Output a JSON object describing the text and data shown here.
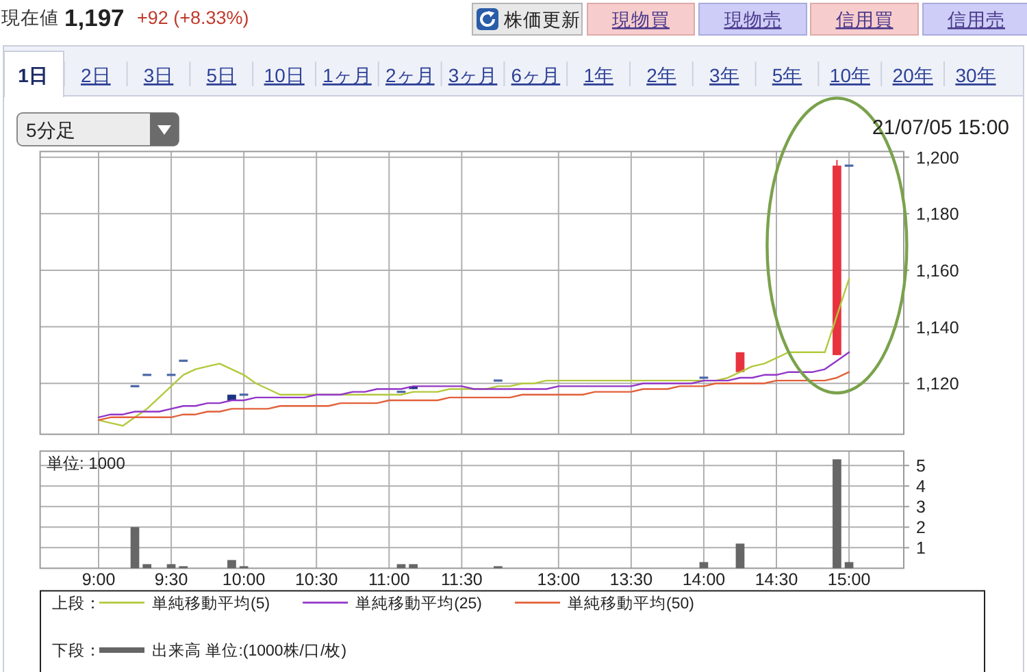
{
  "chart_data": [
    {
      "type": "other",
      "annotations": [
        "現在値",
        "1,197",
        "+92 (+8.33%)",
        "株価更新",
        "現物買",
        "現物売",
        "信用買",
        "信用売",
        "1日",
        "2日",
        "3日",
        "5日",
        "10日",
        "1ヶ月",
        "2ヶ月",
        "3ヶ月",
        "6ヶ月",
        "1年",
        "2年",
        "3年",
        "5年",
        "10年",
        "20年",
        "30年",
        "5分足"
      ]
    },
    {
      "type": "candlestick",
      "categories": [
        null,
        null,
        null,
        null,
        null,
        null,
        null,
        null,
        null,
        null,
        null,
        null,
        null,
        null,
        null,
        null,
        null,
        null,
        null,
        null,
        null,
        null,
        null,
        null,
        null,
        null,
        null,
        null,
        null,
        null,
        null,
        null,
        null,
        null,
        null,
        null,
        null,
        null,
        null,
        null,
        null,
        null,
        null,
        null,
        null,
        null,
        null,
        null,
        null,
        null,
        null,
        null,
        null,
        null,
        null,
        null,
        null,
        null,
        null,
        null,
        null,
        null,
        null
      ],
      "ohlc": [
        null,
        null,
        null,
        [
          1119,
          1119,
          1119,
          1119
        ],
        [
          1123,
          1123,
          1123,
          1123
        ],
        null,
        [
          1123,
          1123,
          1123,
          1123
        ],
        [
          1128,
          1128,
          1128,
          1128
        ],
        null,
        null,
        null,
        [
          1116,
          1116,
          1114,
          1114
        ],
        [
          1116,
          1116,
          1116,
          1116
        ],
        null,
        null,
        null,
        null,
        null,
        null,
        null,
        null,
        null,
        null,
        null,
        null,
        [
          1117,
          1117,
          1117,
          1117
        ],
        [
          1119,
          1119,
          1118,
          1118
        ],
        null,
        null,
        null,
        null,
        null,
        null,
        [
          1121,
          1121,
          1121,
          1121
        ],
        null,
        null,
        null,
        null,
        null,
        null,
        null,
        null,
        null,
        null,
        null,
        null,
        null,
        null,
        null,
        null,
        [
          1122,
          1122,
          1122,
          1122
        ],
        null,
        null,
        [
          1124,
          1131,
          1124,
          1131
        ],
        null,
        null,
        null,
        null,
        null,
        null,
        null,
        [
          1130,
          1199,
          1130,
          1197
        ],
        [
          1197,
          1197,
          1197,
          1197
        ]
      ],
      "colors": [
        null,
        null,
        null,
        "#4a66a8",
        "#4a66a8",
        null,
        "#4a66a8",
        "#4a66a8",
        null,
        null,
        null,
        "#1c3382",
        "#4a66a8",
        null,
        null,
        null,
        null,
        null,
        null,
        null,
        null,
        null,
        null,
        null,
        null,
        "#4a66a8",
        "#1c3382",
        null,
        null,
        null,
        null,
        null,
        null,
        "#4a66a8",
        null,
        null,
        null,
        null,
        null,
        null,
        null,
        null,
        null,
        null,
        null,
        null,
        null,
        null,
        null,
        null,
        "#4a66a8",
        null,
        null,
        "#e8333f",
        null,
        null,
        null,
        null,
        null,
        null,
        null,
        "#e8333f",
        "#4a66a8"
      ],
      "series": [
        {
          "type": "line",
          "name": "単純移動平均(5)",
          "color": "#b4c83c",
          "values": [
            1107,
            1106,
            1105,
            1108,
            1111,
            1115,
            1119,
            1123,
            1125,
            1126,
            1127,
            1125,
            1123,
            1120,
            1118,
            1116,
            1116,
            1116,
            1116,
            1116,
            1116,
            1116,
            1116,
            1116,
            1116,
            1116,
            1117,
            1117,
            1117,
            1118,
            1118,
            1118,
            1118,
            1119,
            1119,
            1120,
            1120,
            1121,
            1121,
            1121,
            1121,
            1121,
            1121,
            1121,
            1121,
            1121,
            1121,
            1121,
            1121,
            1121,
            1121,
            1121,
            1122,
            1124,
            1126,
            1127,
            1129,
            1131,
            1131,
            1131,
            1131,
            1144,
            1157
          ]
        },
        {
          "type": "line",
          "name": "単純移動平均(25)",
          "color": "#9236c8",
          "values": [
            1108,
            1109,
            1109,
            1110,
            1110,
            1110,
            1111,
            1112,
            1112,
            1113,
            1113,
            1114,
            1114,
            1115,
            1115,
            1115,
            1115,
            1115,
            1116,
            1116,
            1116,
            1117,
            1117,
            1118,
            1118,
            1118,
            1119,
            1119,
            1119,
            1119,
            1119,
            1118,
            1118,
            1118,
            1118,
            1118,
            1118,
            1118,
            1119,
            1119,
            1119,
            1119,
            1119,
            1119,
            1119,
            1120,
            1120,
            1120,
            1120,
            1120,
            1121,
            1121,
            1121,
            1122,
            1122,
            1123,
            1123,
            1124,
            1124,
            1124,
            1125,
            1128,
            1131
          ]
        },
        {
          "type": "line",
          "name": "単純移動平均(50)",
          "color": "#e2603a",
          "values": [
            1107,
            1108,
            1108,
            1108,
            1108,
            1108,
            1108,
            1109,
            1109,
            1110,
            1110,
            1111,
            1111,
            1111,
            1111,
            1112,
            1112,
            1112,
            1112,
            1112,
            1113,
            1113,
            1113,
            1113,
            1114,
            1114,
            1114,
            1114,
            1114,
            1115,
            1115,
            1115,
            1115,
            1115,
            1115,
            1116,
            1116,
            1116,
            1116,
            1116,
            1116,
            1117,
            1117,
            1117,
            1117,
            1118,
            1118,
            1118,
            1119,
            1119,
            1119,
            1120,
            1120,
            1120,
            1120,
            1120,
            1121,
            1121,
            1121,
            1121,
            1121,
            1122,
            1124
          ]
        }
      ],
      "ylim": [
        1102,
        1202
      ],
      "yticks": [
        {
          "value": 1120,
          "label": "1,120"
        },
        {
          "value": 1140,
          "label": "1,140"
        },
        {
          "value": 1160,
          "label": "1,160"
        },
        {
          "value": 1180,
          "label": "1,180"
        },
        {
          "value": 1200,
          "label": "1,200"
        }
      ],
      "grid": true,
      "tick_labels": "y",
      "legend": "bottom",
      "legend_title": "上段：",
      "annotations": [
        "21/07/05 15:00"
      ]
    },
    {
      "type": "bar",
      "categories": [
        "9:00",
        null,
        null,
        null,
        null,
        null,
        "9:30",
        null,
        null,
        null,
        null,
        null,
        "10:00",
        null,
        null,
        null,
        null,
        null,
        "10:30",
        null,
        null,
        null,
        null,
        null,
        "11:00",
        null,
        null,
        null,
        null,
        null,
        "11:30",
        null,
        null,
        null,
        null,
        null,
        null,
        null,
        "13:00",
        null,
        null,
        null,
        null,
        null,
        "13:30",
        null,
        null,
        null,
        null,
        null,
        "14:00",
        null,
        null,
        null,
        null,
        null,
        "14:30",
        null,
        null,
        null,
        null,
        null,
        "15:00"
      ],
      "series": [
        {
          "name": "出来高 単位:(1000株/口/枚)",
          "color": "#666666",
          "values": [
            null,
            null,
            null,
            2.0,
            0.2,
            null,
            0.2,
            0.1,
            null,
            null,
            null,
            0.4,
            0.1,
            null,
            null,
            null,
            null,
            null,
            null,
            null,
            null,
            null,
            null,
            null,
            null,
            0.2,
            0.2,
            null,
            null,
            null,
            null,
            null,
            null,
            0.1,
            null,
            null,
            null,
            null,
            null,
            null,
            null,
            null,
            null,
            null,
            null,
            null,
            null,
            null,
            null,
            null,
            0.3,
            null,
            null,
            1.2,
            null,
            null,
            null,
            null,
            null,
            null,
            null,
            5.3,
            0.3
          ]
        }
      ],
      "ylim": [
        0,
        5.7
      ],
      "yticks": [
        1,
        2,
        3,
        4,
        5
      ],
      "grid": true,
      "legend": "bottom",
      "legend_title": "下段：",
      "annotations": [
        "単位: 1000"
      ]
    }
  ]
}
